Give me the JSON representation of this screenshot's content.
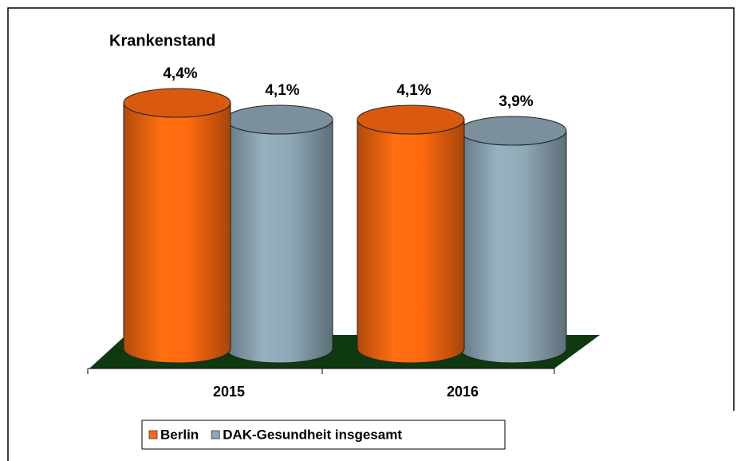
{
  "chart_data": {
    "type": "bar3d",
    "title": "Krankenstand",
    "categories": [
      "2015",
      "2016"
    ],
    "series": [
      {
        "name": "Berlin",
        "color": "#ff6a10",
        "values": [
          4.4,
          4.1
        ],
        "value_labels": [
          "4,4%",
          "4,1%"
        ]
      },
      {
        "name": "DAK-Gesundheit insgesamt",
        "color": "#8fa9b7",
        "values": [
          4.1,
          3.9
        ],
        "value_labels": [
          "4,1%",
          "3,9%"
        ]
      }
    ],
    "floor_color": "#0f3a10",
    "legend": "bottom"
  }
}
